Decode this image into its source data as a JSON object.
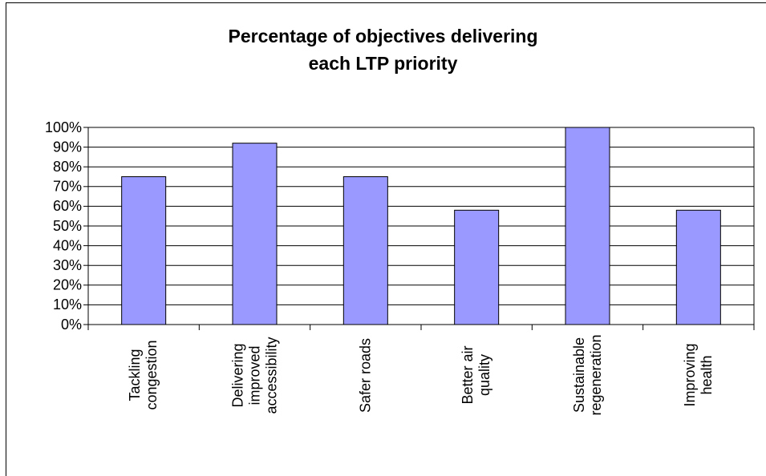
{
  "chart_data": {
    "type": "bar",
    "title": "Percentage of objectives delivering each LTP priority",
    "categories": [
      "Tackling congestion",
      "Delivering improved accessibility",
      "Safer roads",
      "Better air quality",
      "Sustainable regeneration",
      "Improving health"
    ],
    "values": [
      75,
      92,
      75,
      58,
      100,
      58
    ],
    "color": "#9999ff",
    "ylim": [
      0,
      100
    ],
    "yticks": [
      {
        "value": 0,
        "label": "0%"
      },
      {
        "value": 10,
        "label": "10%"
      },
      {
        "value": 20,
        "label": "20%"
      },
      {
        "value": 30,
        "label": "30%"
      },
      {
        "value": 40,
        "label": "40%"
      },
      {
        "value": 50,
        "label": "50%"
      },
      {
        "value": 60,
        "label": "60%"
      },
      {
        "value": 70,
        "label": "70%"
      },
      {
        "value": 80,
        "label": "80%"
      },
      {
        "value": 90,
        "label": "90%"
      },
      {
        "value": 100,
        "label": "100%"
      }
    ],
    "grid": true
  }
}
